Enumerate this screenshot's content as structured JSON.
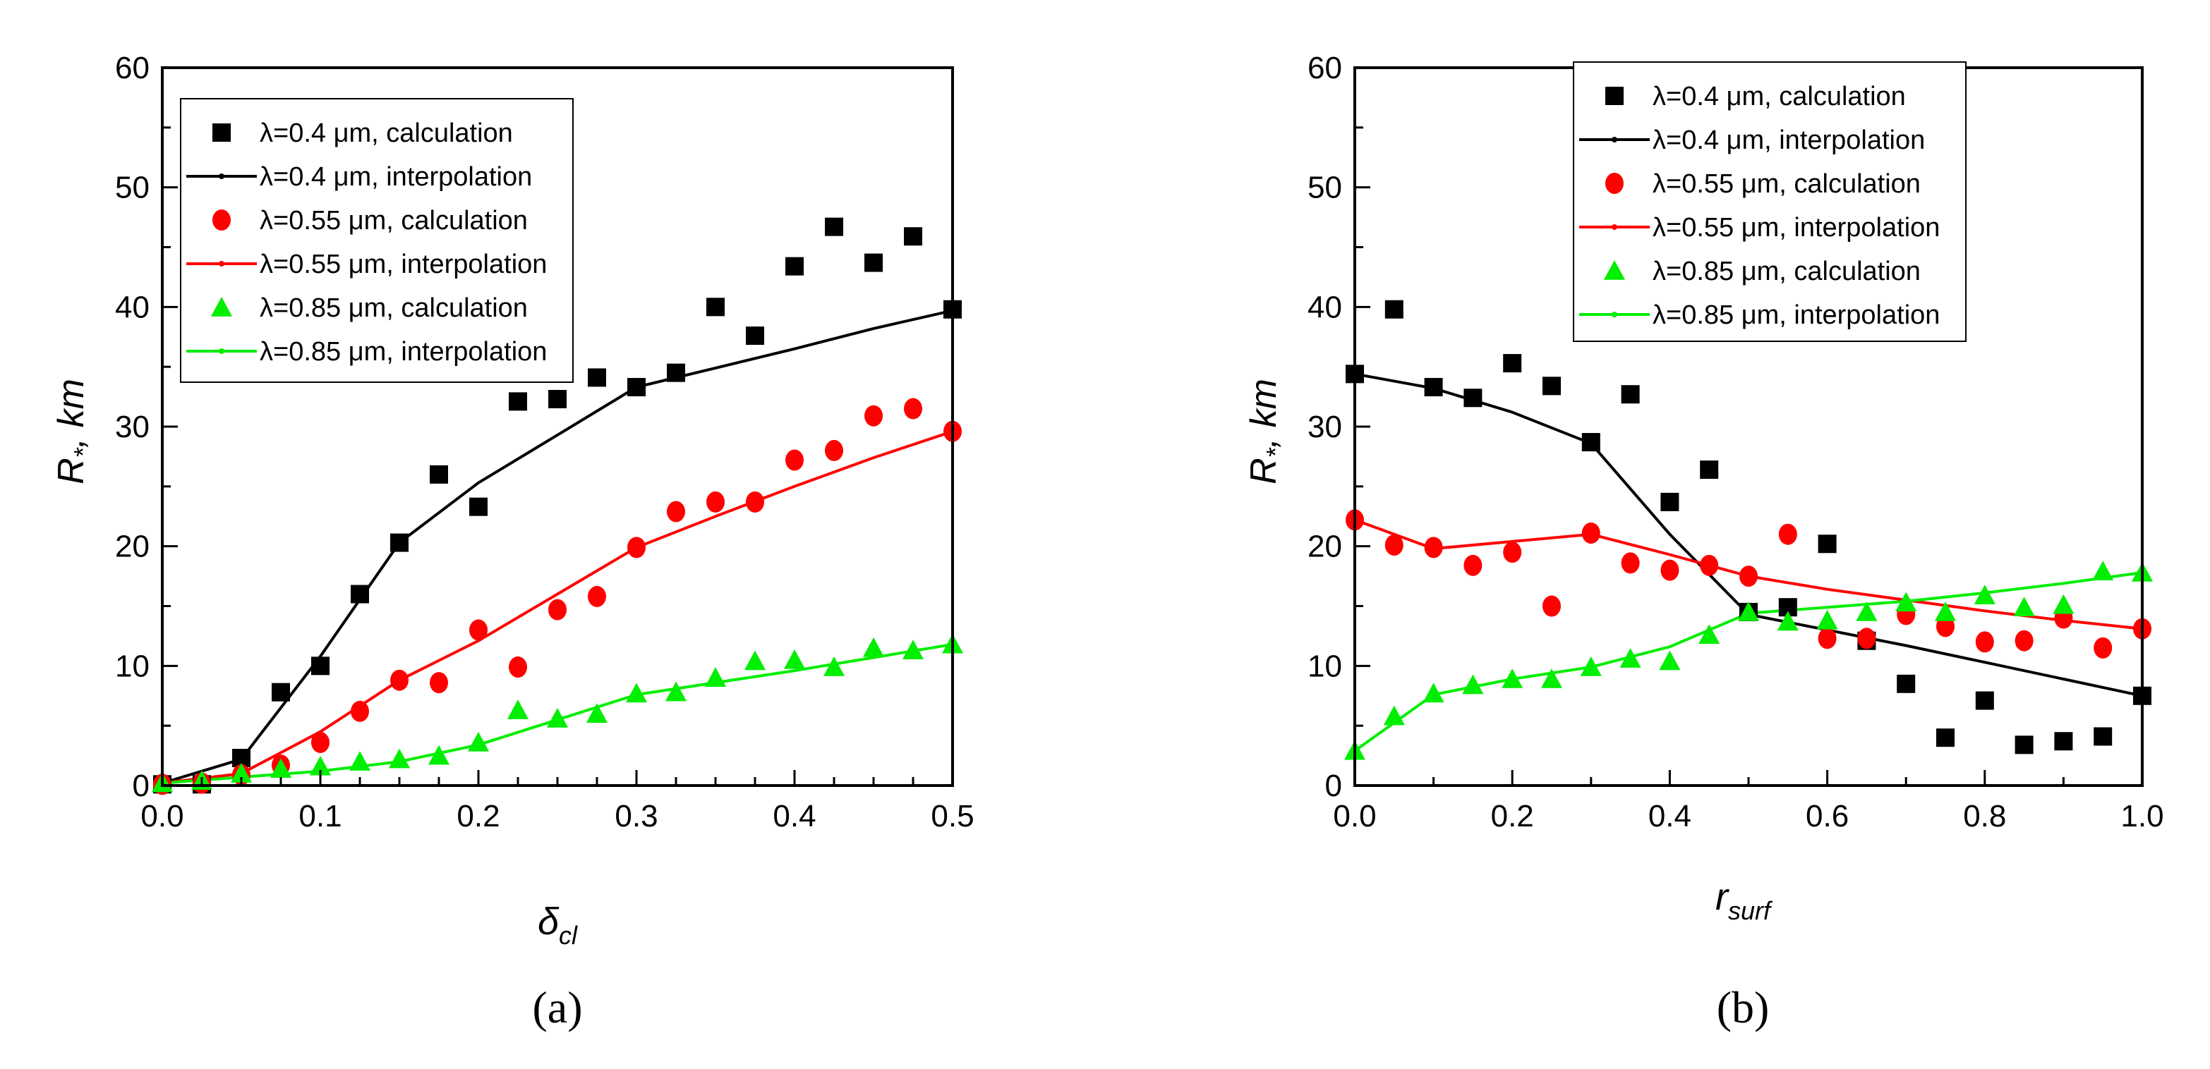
{
  "figure": {
    "colors": {
      "black": "#000000",
      "red": "#ff0000",
      "green": "#00ee00"
    },
    "legend_labels": [
      "λ=0.4 μm, calculation",
      "λ=0.4 μm, interpolation",
      "λ=0.55 μm, calculation",
      "λ=0.55 μm, interpolation",
      "λ=0.85 μm, calculation",
      "λ=0.85 μm, interpolation"
    ]
  },
  "chart_data": [
    {
      "type": "scatter",
      "panel_label": "(a)",
      "title": "",
      "xlabel": "δ",
      "xlabel_sub": "cl",
      "ylabel": "R",
      "ylabel_sub": "*",
      "ylabel_suffix": ", km",
      "xlim": [
        0,
        0.5
      ],
      "ylim": [
        0,
        60
      ],
      "xticks": [
        "0.0",
        "0.1",
        "0.2",
        "0.3",
        "0.4",
        "0.5"
      ],
      "yticks": [
        "0",
        "10",
        "20",
        "30",
        "40",
        "50",
        "60"
      ],
      "legend_position": "top-left",
      "series": [
        {
          "name": "λ=0.4 μm, calculation",
          "kind": "points",
          "marker": "square",
          "color": "#000000",
          "x": [
            0,
            0.025,
            0.05,
            0.075,
            0.1,
            0.125,
            0.15,
            0.175,
            0.2,
            0.225,
            0.25,
            0.275,
            0.3,
            0.325,
            0.35,
            0.375,
            0.4,
            0.425,
            0.45,
            0.475,
            0.5
          ],
          "y": [
            0.1,
            0.1,
            2.3,
            7.8,
            10.0,
            16.0,
            20.3,
            26.0,
            23.3,
            32.1,
            32.3,
            34.1,
            33.3,
            34.5,
            40.0,
            37.6,
            43.4,
            46.7,
            43.7,
            45.9,
            39.8
          ]
        },
        {
          "name": "λ=0.4 μm, interpolation",
          "kind": "line",
          "color": "#000000",
          "x": [
            0,
            0.05,
            0.1,
            0.15,
            0.2,
            0.25,
            0.3,
            0.35,
            0.4,
            0.45,
            0.5
          ],
          "y": [
            0.2,
            2.2,
            10.8,
            20.3,
            25.3,
            29.3,
            33.3,
            34.9,
            36.5,
            38.2,
            39.7
          ]
        },
        {
          "name": "λ=0.55 μm, calculation",
          "kind": "points",
          "marker": "circle",
          "color": "#ff0000",
          "x": [
            0,
            0.025,
            0.05,
            0.075,
            0.1,
            0.125,
            0.15,
            0.175,
            0.2,
            0.225,
            0.25,
            0.275,
            0.3,
            0.325,
            0.35,
            0.375,
            0.4,
            0.425,
            0.45,
            0.475,
            0.5
          ],
          "y": [
            0.1,
            0.2,
            0.9,
            1.7,
            3.6,
            6.2,
            8.8,
            8.6,
            13.0,
            9.9,
            14.7,
            15.8,
            19.9,
            22.9,
            23.7,
            23.7,
            27.2,
            28.0,
            30.9,
            31.5,
            29.6
          ]
        },
        {
          "name": "λ=0.55 μm, interpolation",
          "kind": "line",
          "color": "#ff0000",
          "x": [
            0,
            0.05,
            0.1,
            0.15,
            0.2,
            0.25,
            0.3,
            0.35,
            0.4,
            0.45,
            0.5
          ],
          "y": [
            0.2,
            1.0,
            4.5,
            8.8,
            12.1,
            16.0,
            19.9,
            22.5,
            25.0,
            27.4,
            29.6
          ]
        },
        {
          "name": "λ=0.85 μm, calculation",
          "kind": "points",
          "marker": "triangle",
          "color": "#00ee00",
          "x": [
            0,
            0.025,
            0.05,
            0.075,
            0.1,
            0.125,
            0.15,
            0.175,
            0.2,
            0.225,
            0.25,
            0.275,
            0.3,
            0.325,
            0.35,
            0.375,
            0.4,
            0.425,
            0.45,
            0.475,
            0.5
          ],
          "y": [
            0.2,
            0.4,
            1.0,
            1.4,
            1.6,
            2.0,
            2.2,
            2.5,
            3.6,
            6.3,
            5.6,
            6.0,
            7.7,
            7.8,
            9.0,
            10.4,
            10.5,
            9.9,
            11.5,
            11.3,
            11.8
          ]
        },
        {
          "name": "λ=0.85 μm, interpolation",
          "kind": "line",
          "color": "#00ee00",
          "x": [
            0,
            0.05,
            0.1,
            0.15,
            0.2,
            0.25,
            0.3,
            0.35,
            0.4,
            0.45,
            0.5
          ],
          "y": [
            0.2,
            0.7,
            1.2,
            2.0,
            3.4,
            5.5,
            7.6,
            8.6,
            9.6,
            10.7,
            11.8
          ]
        }
      ]
    },
    {
      "type": "scatter",
      "panel_label": "(b)",
      "title": "",
      "xlabel": "r",
      "xlabel_sub": "surf",
      "ylabel": "R",
      "ylabel_sub": "*",
      "ylabel_suffix": ", km",
      "xlim": [
        0,
        1.0
      ],
      "ylim": [
        0,
        60
      ],
      "xticks": [
        "0.0",
        "0.2",
        "0.4",
        "0.6",
        "0.8",
        "1.0"
      ],
      "yticks": [
        "0",
        "10",
        "20",
        "30",
        "40",
        "50",
        "60"
      ],
      "legend_position": "top-right",
      "series": [
        {
          "name": "λ=0.4 μm, calculation",
          "kind": "points",
          "marker": "square",
          "color": "#000000",
          "x": [
            0,
            0.05,
            0.1,
            0.15,
            0.2,
            0.25,
            0.3,
            0.35,
            0.4,
            0.45,
            0.5,
            0.55,
            0.6,
            0.65,
            0.7,
            0.75,
            0.8,
            0.85,
            0.9,
            0.95,
            1.0
          ],
          "y": [
            34.4,
            39.8,
            33.3,
            32.4,
            35.3,
            33.4,
            28.7,
            32.7,
            23.7,
            26.4,
            14.5,
            14.9,
            20.2,
            12.1,
            8.5,
            4.0,
            7.1,
            3.4,
            3.7,
            4.1,
            7.5
          ]
        },
        {
          "name": "λ=0.4 μm, interpolation",
          "kind": "line",
          "color": "#000000",
          "x": [
            0,
            0.1,
            0.2,
            0.3,
            0.4,
            0.5,
            0.6,
            0.7,
            0.8,
            0.9,
            1.0
          ],
          "y": [
            34.4,
            33.2,
            31.2,
            28.6,
            21.0,
            14.3,
            13.0,
            11.7,
            10.3,
            8.9,
            7.5
          ]
        },
        {
          "name": "λ=0.55 μm, calculation",
          "kind": "points",
          "marker": "circle",
          "color": "#ff0000",
          "x": [
            0,
            0.05,
            0.1,
            0.15,
            0.2,
            0.25,
            0.3,
            0.35,
            0.4,
            0.45,
            0.5,
            0.55,
            0.6,
            0.65,
            0.7,
            0.75,
            0.8,
            0.85,
            0.9,
            0.95,
            1.0
          ],
          "y": [
            22.2,
            20.1,
            19.9,
            18.4,
            19.5,
            15.0,
            21.1,
            18.6,
            18.0,
            18.4,
            17.5,
            21.0,
            12.3,
            12.3,
            14.3,
            13.3,
            12.0,
            12.1,
            14.0,
            11.5,
            13.1
          ]
        },
        {
          "name": "λ=0.55 μm, interpolation",
          "kind": "line",
          "color": "#ff0000",
          "x": [
            0,
            0.1,
            0.2,
            0.3,
            0.4,
            0.5,
            0.6,
            0.7,
            0.8,
            0.9,
            1.0
          ],
          "y": [
            22.2,
            19.8,
            20.4,
            21.0,
            19.3,
            17.5,
            16.4,
            15.5,
            14.6,
            13.8,
            13.1
          ]
        },
        {
          "name": "λ=0.85 μm, calculation",
          "kind": "points",
          "marker": "triangle",
          "color": "#00ee00",
          "x": [
            0,
            0.05,
            0.1,
            0.15,
            0.2,
            0.25,
            0.3,
            0.35,
            0.4,
            0.45,
            0.5,
            0.55,
            0.6,
            0.65,
            0.7,
            0.75,
            0.8,
            0.85,
            0.9,
            0.95,
            1.0
          ],
          "y": [
            2.9,
            5.8,
            7.7,
            8.4,
            8.9,
            8.9,
            9.9,
            10.6,
            10.4,
            12.6,
            14.5,
            13.7,
            13.8,
            14.5,
            15.3,
            14.5,
            15.9,
            14.9,
            15.1,
            17.9,
            17.8
          ]
        },
        {
          "name": "λ=0.85 μm, interpolation",
          "kind": "line",
          "color": "#00ee00",
          "x": [
            0,
            0.1,
            0.2,
            0.3,
            0.4,
            0.5,
            0.6,
            0.7,
            0.8,
            0.9,
            1.0
          ],
          "y": [
            2.9,
            7.6,
            8.9,
            9.9,
            11.6,
            14.4,
            14.9,
            15.4,
            16.1,
            16.9,
            17.8
          ]
        }
      ]
    }
  ]
}
